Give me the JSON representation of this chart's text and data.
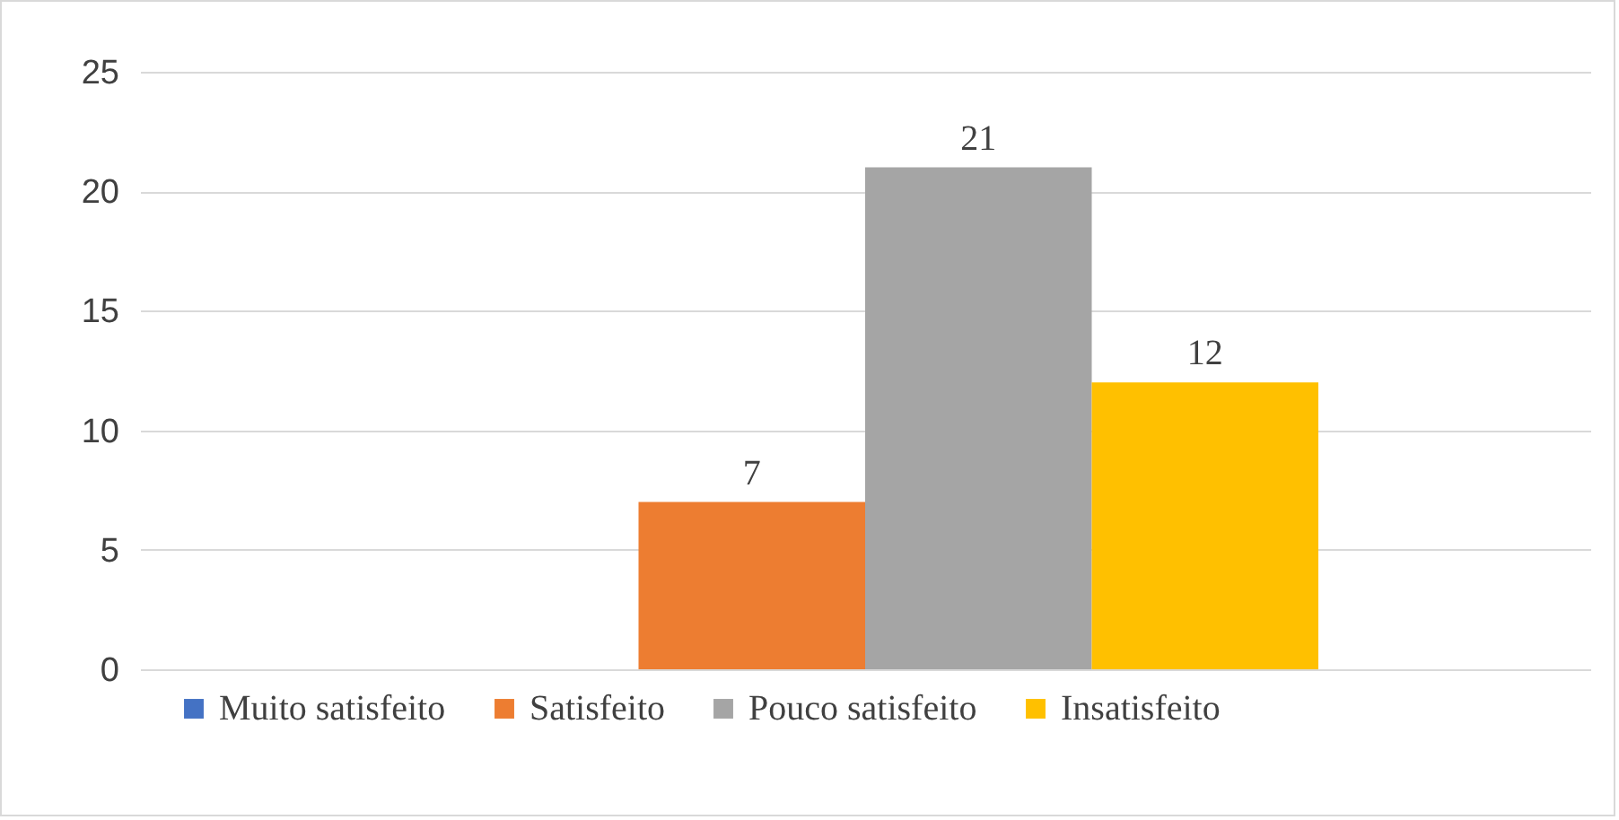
{
  "chart_data": {
    "type": "bar",
    "categories": [
      null
    ],
    "series": [
      {
        "name": "Muito satisfeito",
        "color": "#4472c4",
        "values": [
          0
        ],
        "value_labels": [
          null
        ]
      },
      {
        "name": "Satisfeito",
        "color": "#ed7d31",
        "values": [
          7
        ],
        "value_labels": [
          "7"
        ]
      },
      {
        "name": "Pouco satisfeito",
        "color": "#a5a5a5",
        "values": [
          21
        ],
        "value_labels": [
          "21"
        ]
      },
      {
        "name": "Insatisfeito",
        "color": "#ffc000",
        "values": [
          12
        ],
        "value_labels": [
          "12"
        ]
      }
    ],
    "ylim": [
      0,
      25
    ],
    "yticks": [
      0,
      5,
      10,
      15,
      20,
      25
    ],
    "grid": "y",
    "legend": "bottom"
  }
}
